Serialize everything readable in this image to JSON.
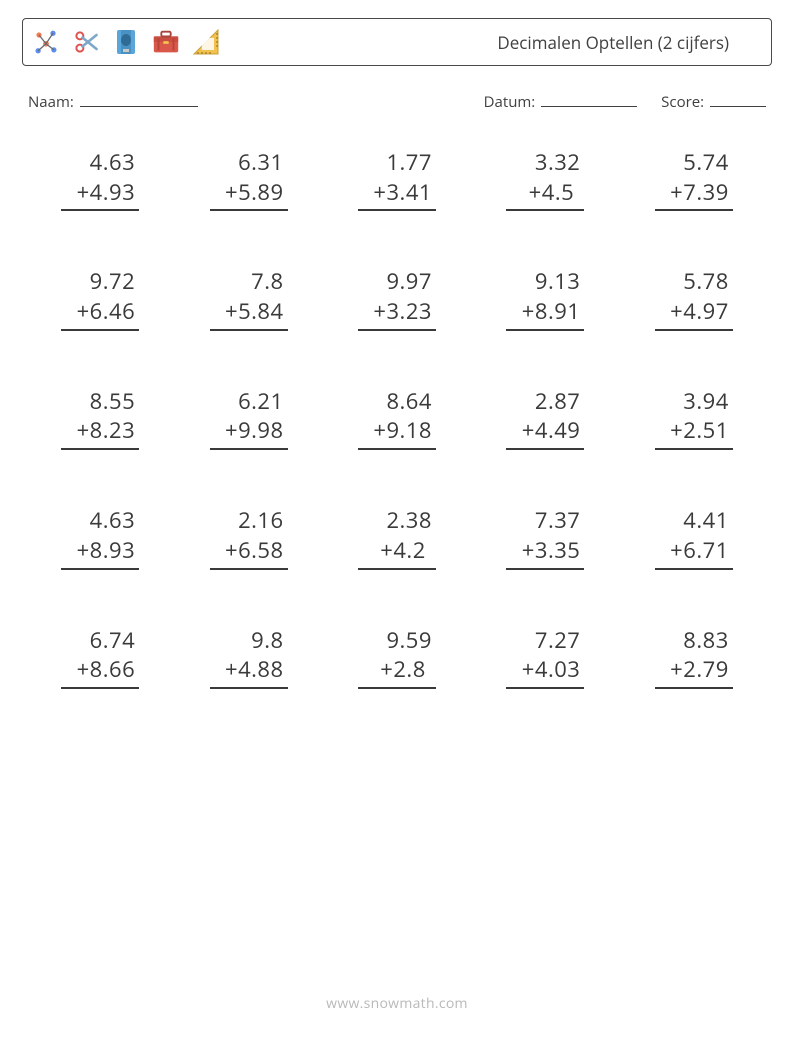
{
  "header": {
    "title": "Decimalen Optellen (2 cijfers)",
    "icons": [
      "molecule-icon",
      "scissors-icon",
      "sharpener-icon",
      "briefcase-icon",
      "protractor-icon"
    ]
  },
  "info": {
    "name_label": "Naam:",
    "date_label": "Datum:",
    "score_label": "Score:"
  },
  "grid": {
    "rows": 5,
    "cols": 5,
    "operator": "+",
    "font_size_pt": 17,
    "text_color": "#3a3a3a",
    "underline_color": "#3a3a3a"
  },
  "problems": [
    {
      "a": "4.63",
      "b": "4.93"
    },
    {
      "a": "6.31",
      "b": "5.89"
    },
    {
      "a": "1.77",
      "b": "3.41"
    },
    {
      "a": "3.32",
      "b": "4.5"
    },
    {
      "a": "5.74",
      "b": "7.39"
    },
    {
      "a": "9.72",
      "b": "6.46"
    },
    {
      "a": "7.8",
      "b": "5.84"
    },
    {
      "a": "9.97",
      "b": "3.23"
    },
    {
      "a": "9.13",
      "b": "8.91"
    },
    {
      "a": "5.78",
      "b": "4.97"
    },
    {
      "a": "8.55",
      "b": "8.23"
    },
    {
      "a": "6.21",
      "b": "9.98"
    },
    {
      "a": "8.64",
      "b": "9.18"
    },
    {
      "a": "2.87",
      "b": "4.49"
    },
    {
      "a": "3.94",
      "b": "2.51"
    },
    {
      "a": "4.63",
      "b": "8.93"
    },
    {
      "a": "2.16",
      "b": "6.58"
    },
    {
      "a": "2.38",
      "b": "4.2"
    },
    {
      "a": "7.37",
      "b": "3.35"
    },
    {
      "a": "4.41",
      "b": "6.71"
    },
    {
      "a": "6.74",
      "b": "8.66"
    },
    {
      "a": "9.8",
      "b": "4.88"
    },
    {
      "a": "9.59",
      "b": "2.8"
    },
    {
      "a": "7.27",
      "b": "4.03"
    },
    {
      "a": "8.83",
      "b": "2.79"
    }
  ],
  "footer": {
    "watermark": "www.snowmath.com"
  },
  "colors": {
    "page_bg": "#ffffff",
    "text": "#404040",
    "border": "#4a4a4a",
    "watermark": "#b9b9b9"
  }
}
